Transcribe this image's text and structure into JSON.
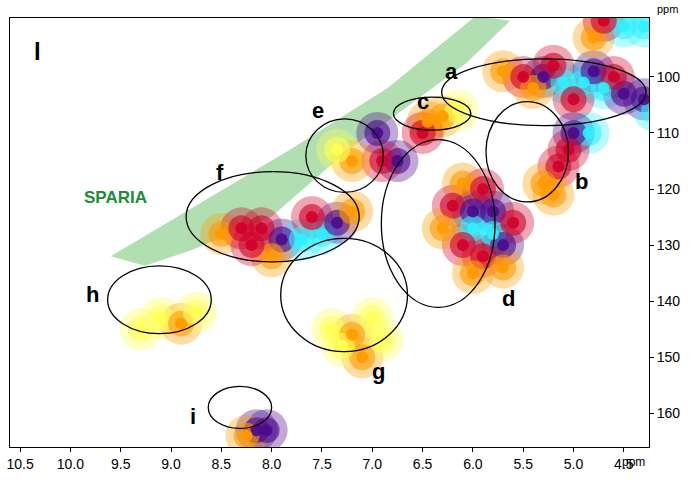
{
  "chart_data": {
    "type": "scatter",
    "x_label": "ppm",
    "y_label": "ppm",
    "xlim": [
      10.6,
      4.25
    ],
    "ylim": [
      166,
      89.5
    ],
    "xticks": [
      10.5,
      {
        "value": 10.0,
        "label": "10.0"
      },
      9.5,
      {
        "value": 9.0,
        "label": "9.0"
      },
      8.5,
      {
        "value": 8.0,
        "label": "8.0"
      },
      7.5,
      {
        "value": 7.0,
        "label": "7.0"
      },
      6.5,
      {
        "value": 6.0,
        "label": "6.0"
      },
      5.5,
      {
        "value": 5.0,
        "label": "5.0"
      },
      4.5
    ],
    "yticks": [
      100,
      110,
      120,
      130,
      140,
      150,
      160
    ],
    "grid": false,
    "peaks": {
      "x": [
        5.7,
        5.5,
        5.3,
        5.1,
        4.9,
        4.7,
        4.5,
        4.3,
        4.2,
        5.2,
        4.8,
        4.6,
        5.0,
        5.4,
        4.8,
        4.5,
        4.3,
        4.7,
        4.85,
        5.0,
        5.05,
        5.15,
        5.3,
        5.2,
        6.45,
        6.3,
        6.15,
        6.5,
        6.1,
        5.9,
        6.2,
        6.0,
        5.8,
        6.0,
        5.8,
        5.7,
        6.1,
        5.9,
        6.3,
        5.6,
        6.0,
        5.7,
        6.95,
        6.75,
        6.9,
        7.2,
        7.35,
        8.5,
        8.3,
        8.1,
        7.9,
        7.7,
        7.5,
        7.35,
        7.2,
        8.0,
        7.6,
        8.2,
        7.4,
        7.2,
        7.0,
        7.1,
        7.3,
        6.9,
        9.1,
        8.9,
        8.75,
        9.3,
        8.15,
        8.05,
        8.25
      ],
      "y": [
        99,
        100,
        100,
        101,
        101,
        102,
        103,
        104,
        106,
        98,
        99,
        100,
        104,
        102,
        93,
        91,
        91,
        90,
        110,
        110,
        113,
        116,
        119,
        121,
        108,
        107,
        106,
        110,
        119,
        120,
        123,
        124,
        124,
        127,
        128,
        130,
        130,
        132,
        127,
        126,
        135,
        134,
        110,
        115,
        115,
        115,
        113,
        128,
        127,
        127,
        129,
        129,
        128,
        126,
        124,
        132,
        125,
        130,
        145,
        146,
        143,
        150,
        148,
        147,
        143,
        144,
        142,
        145,
        163,
        163,
        164
      ],
      "intensity": [
        2,
        3,
        4,
        5,
        5,
        5,
        4,
        4,
        5,
        3,
        4,
        3,
        3,
        2,
        2,
        5,
        5,
        3,
        5,
        4,
        3,
        3,
        2,
        2,
        2,
        2,
        1,
        3,
        2,
        3,
        3,
        4,
        4,
        5,
        5,
        4,
        3,
        3,
        2,
        3,
        2,
        2,
        4,
        4,
        3,
        2,
        1,
        2,
        3,
        3,
        4,
        5,
        5,
        4,
        2,
        2,
        3,
        3,
        1,
        2,
        1,
        2,
        1,
        1,
        1,
        2,
        1,
        1,
        4,
        4,
        2
      ]
    },
    "intensity_range": [
      1,
      5
    ],
    "sparia_region": {
      "x": [
        9.6,
        8.78,
        7.81,
        6.84,
        5.97,
        5.63,
        6.07,
        6.65,
        7.23,
        8.0,
        8.78,
        9.26
      ],
      "y": [
        132.0,
        123.3,
        112.9,
        101.9,
        89.1,
        90.0,
        97.6,
        105.3,
        112.9,
        124.9,
        130.8,
        133.7
      ],
      "color": "#a9dba9"
    },
    "regions": [
      {
        "label": "a",
        "x": [
          6.31,
          4.28
        ],
        "y": [
          96.8,
          108.7
        ],
        "label_x": 6.21,
        "label_y": 99.0
      },
      {
        "label": "b",
        "x": [
          5.87,
          5.05
        ],
        "y": [
          104.4,
          122.3
        ],
        "label_x": 4.92,
        "label_y": 118.6
      },
      {
        "label": "c",
        "x": [
          6.79,
          6.02
        ],
        "y": [
          103.6,
          109.5
        ],
        "label_x": 6.5,
        "label_y": 104.4
      },
      {
        "label": "d",
        "x": [
          6.91,
          5.78
        ],
        "y": [
          111.2,
          141.1
        ],
        "label_x": 5.65,
        "label_y": 139.5
      },
      {
        "label": "e",
        "x": [
          7.66,
          6.89
        ],
        "y": [
          107.5,
          120.6
        ],
        "label_x": 7.54,
        "label_y": 106.0
      },
      {
        "label": "f",
        "x": [
          8.85,
          7.13
        ],
        "y": [
          116.9,
          133.0
        ],
        "label_x": 8.51,
        "label_y": 117.0
      },
      {
        "label": "g",
        "x": [
          7.91,
          6.65
        ],
        "y": [
          128.8,
          149.0
        ],
        "label_x": 6.94,
        "label_y": 152.5
      },
      {
        "label": "h",
        "x": [
          9.63,
          8.6
        ],
        "y": [
          133.7,
          145.8
        ],
        "label_x": 9.78,
        "label_y": 138.8
      },
      {
        "label": "i",
        "x": [
          8.63,
          8.0
        ],
        "y": [
          155.2,
          162.7
        ],
        "label_x": 8.78,
        "label_y": 160.5
      }
    ],
    "annotations": [
      {
        "text": "l",
        "x": 10.33,
        "y": 95.5,
        "color": "#000000"
      },
      {
        "text": "SPARIA",
        "x": 9.55,
        "y": 121.5,
        "color": "#1e8c3a"
      }
    ]
  }
}
